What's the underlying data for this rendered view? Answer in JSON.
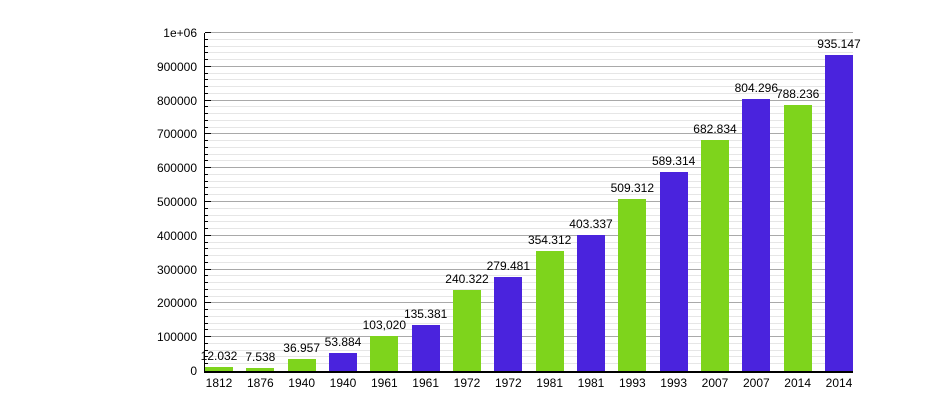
{
  "chart_data": {
    "type": "bar",
    "grid": true,
    "legend": "none",
    "ylim": [
      0,
      1000000
    ],
    "y_major_step": 100000,
    "y_minor_step": 20000,
    "y_tick_labels": [
      "0",
      "100000",
      "200000",
      "300000",
      "400000",
      "500000",
      "600000",
      "700000",
      "800000",
      "900000",
      "1e+06"
    ],
    "categories": [
      "1812",
      "1876",
      "1940",
      "1940",
      "1961",
      "1961",
      "1972",
      "1972",
      "1981",
      "1981",
      "1993",
      "1993",
      "2007",
      "2007",
      "2014",
      "2014"
    ],
    "colors": {
      "green": "#7ed41c",
      "blue": "#4a23dd",
      "axis": "#000000",
      "major_grid": "#a9a9a9",
      "minor_grid": "#e6e6e6",
      "background": "#ffffff"
    },
    "bars": [
      {
        "year": "1812",
        "label": "12.032",
        "value": 12032,
        "color": "green"
      },
      {
        "year": "1876",
        "label": "7.538",
        "value": 7538,
        "color": "green"
      },
      {
        "year": "1940",
        "label": "36.957",
        "value": 36957,
        "color": "green"
      },
      {
        "year": "1940",
        "label": "53.884",
        "value": 53884,
        "color": "blue"
      },
      {
        "year": "1961",
        "label": "103,020",
        "value": 103020,
        "color": "green"
      },
      {
        "year": "1961",
        "label": "135.381",
        "value": 135381,
        "color": "blue"
      },
      {
        "year": "1972",
        "label": "240.322",
        "value": 240322,
        "color": "green"
      },
      {
        "year": "1972",
        "label": "279.481",
        "value": 279481,
        "color": "blue"
      },
      {
        "year": "1981",
        "label": "354.312",
        "value": 354312,
        "color": "green"
      },
      {
        "year": "1981",
        "label": "403.337",
        "value": 403337,
        "color": "blue"
      },
      {
        "year": "1993",
        "label": "509.312",
        "value": 509312,
        "color": "green"
      },
      {
        "year": "1993",
        "label": "589.314",
        "value": 589314,
        "color": "blue"
      },
      {
        "year": "2007",
        "label": "682.834",
        "value": 682834,
        "color": "green"
      },
      {
        "year": "2007",
        "label": "804.296",
        "value": 804296,
        "color": "blue"
      },
      {
        "year": "2014",
        "label": "788.236",
        "value": 788236,
        "color": "green"
      },
      {
        "year": "2014",
        "label": "935.147",
        "value": 935147,
        "color": "blue"
      }
    ]
  }
}
